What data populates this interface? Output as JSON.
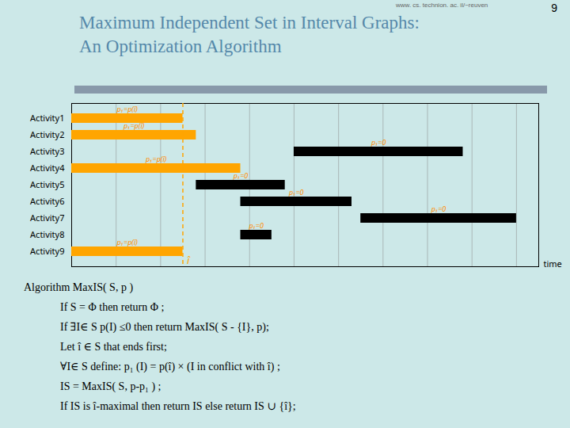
{
  "chart_data": {
    "type": "bar",
    "orientation": "horizontal",
    "title": "Maximum Independent Set  in Interval Graphs:",
    "subtitle": "An Optimization Algorithm",
    "annotations": [
      "www. cs. technion. ac. il/~reuven",
      "9"
    ],
    "caption": [
      "Algorithm MaxIS( S,  p )",
      "If  S = Φ then return Φ ;",
      "If ∃I∈ S p(I) ≤0 then return MaxIS( S - {I},  p);",
      "Let î ∈ S that ends first;",
      "∀I∈ S define: p₁ (I)  =  p(î) × (I  in conflict with î)  ;",
      "IS = MaxIS( S,  p-p₁ ) ;",
      "If  IS  is î-maximal then return IS  else return IS ∪ {î};"
    ],
    "categories": [
      "Activity9",
      "Activity8",
      "Activity7",
      "Activity6",
      "Activity5",
      "Activity4",
      "Activity3",
      "Activity2",
      "Activity1"
    ],
    "bars": [
      {
        "category": "Activity9",
        "start": 0.0,
        "end": 2.5,
        "color": "orange",
        "label": "p₁=p(î)"
      },
      {
        "category": "Activity8",
        "start": 3.8,
        "end": 4.5,
        "color": "black",
        "label": "p₁=0"
      },
      {
        "category": "Activity7",
        "start": 6.5,
        "end": 10.0,
        "color": "black",
        "label": "p₁=0"
      },
      {
        "category": "Activity6",
        "start": 3.8,
        "end": 6.3,
        "color": "black",
        "label": "p₁=0"
      },
      {
        "category": "Activity5",
        "start": 2.8,
        "end": 4.8,
        "color": "black",
        "label": "p₁=0"
      },
      {
        "category": "Activity4",
        "start": 0.0,
        "end": 3.8,
        "color": "orange",
        "label": "p₁=p(î)"
      },
      {
        "category": "Activity3",
        "start": 5.0,
        "end": 8.8,
        "color": "black",
        "label": "p₁=0"
      },
      {
        "category": "Activity2",
        "start": 0.0,
        "end": 2.8,
        "color": "orange",
        "label": "p₁=p(î)"
      },
      {
        "category": "Activity1",
        "start": 0.0,
        "end": 2.5,
        "color": "orange",
        "label": "p₁=p(î)"
      }
    ],
    "reference_line": {
      "x": 2.5,
      "label": "î",
      "color": "orange",
      "line_style": "dashed"
    },
    "x_label": "time",
    "xlim": [
      0,
      10.5
    ],
    "xticks": [
      0,
      1,
      2,
      3,
      4,
      5,
      6,
      7,
      8,
      9,
      10
    ],
    "grid": true,
    "tick_labels": "y"
  }
}
